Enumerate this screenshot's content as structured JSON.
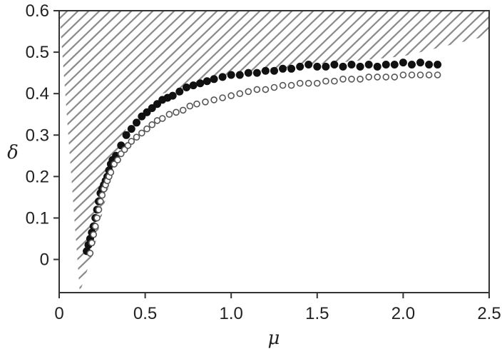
{
  "chart_data": {
    "type": "scatter",
    "xlabel": "μ",
    "ylabel": "δ",
    "xlim": [
      0,
      2.5
    ],
    "ylim": [
      -0.08,
      0.6
    ],
    "xticks": [
      "0",
      "0.5",
      "1.0",
      "1.5",
      "2.0",
      "2.5"
    ],
    "xtick_values": [
      0,
      0.5,
      1.0,
      1.5,
      2.0,
      2.5
    ],
    "yticks": [
      "0",
      "0.1",
      "0.2",
      "0.3",
      "0.4",
      "0.5",
      "0.6"
    ],
    "ytick_values": [
      0,
      0.1,
      0.2,
      0.3,
      0.4,
      0.5,
      0.6
    ],
    "grid": false,
    "legend": "none",
    "hatched_region": {
      "description": "infeasible region above boundary",
      "boundary": [
        [
          0.12,
          -0.08
        ],
        [
          0.2,
          0.02
        ],
        [
          0.3,
          0.2
        ],
        [
          0.4,
          0.33
        ],
        [
          0.6,
          0.4
        ],
        [
          1.0,
          0.445
        ],
        [
          1.5,
          0.47
        ],
        [
          2.0,
          0.49
        ],
        [
          2.5,
          0.54
        ]
      ],
      "color": "#8a8a8a"
    },
    "series": [
      {
        "marker": "filled",
        "color": "#111111",
        "points": [
          [
            0.16,
            0.02
          ],
          [
            0.17,
            0.035
          ],
          [
            0.18,
            0.05
          ],
          [
            0.19,
            0.065
          ],
          [
            0.2,
            0.08
          ],
          [
            0.21,
            0.1
          ],
          [
            0.22,
            0.12
          ],
          [
            0.23,
            0.14
          ],
          [
            0.24,
            0.16
          ],
          [
            0.25,
            0.17
          ],
          [
            0.26,
            0.18
          ],
          [
            0.27,
            0.19
          ],
          [
            0.28,
            0.2
          ],
          [
            0.29,
            0.215
          ],
          [
            0.3,
            0.23
          ],
          [
            0.31,
            0.24
          ],
          [
            0.33,
            0.25
          ],
          [
            0.36,
            0.275
          ],
          [
            0.39,
            0.3
          ],
          [
            0.42,
            0.315
          ],
          [
            0.45,
            0.33
          ],
          [
            0.48,
            0.345
          ],
          [
            0.51,
            0.355
          ],
          [
            0.54,
            0.365
          ],
          [
            0.57,
            0.375
          ],
          [
            0.6,
            0.385
          ],
          [
            0.63,
            0.39
          ],
          [
            0.66,
            0.395
          ],
          [
            0.7,
            0.405
          ],
          [
            0.74,
            0.415
          ],
          [
            0.78,
            0.42
          ],
          [
            0.82,
            0.425
          ],
          [
            0.86,
            0.43
          ],
          [
            0.9,
            0.435
          ],
          [
            0.95,
            0.44
          ],
          [
            1.0,
            0.445
          ],
          [
            1.05,
            0.445
          ],
          [
            1.1,
            0.45
          ],
          [
            1.15,
            0.45
          ],
          [
            1.2,
            0.455
          ],
          [
            1.25,
            0.455
          ],
          [
            1.3,
            0.46
          ],
          [
            1.35,
            0.46
          ],
          [
            1.4,
            0.465
          ],
          [
            1.45,
            0.47
          ],
          [
            1.5,
            0.465
          ],
          [
            1.55,
            0.465
          ],
          [
            1.6,
            0.47
          ],
          [
            1.65,
            0.465
          ],
          [
            1.7,
            0.47
          ],
          [
            1.75,
            0.465
          ],
          [
            1.8,
            0.47
          ],
          [
            1.85,
            0.465
          ],
          [
            1.9,
            0.47
          ],
          [
            1.95,
            0.47
          ],
          [
            2.0,
            0.475
          ],
          [
            2.05,
            0.47
          ],
          [
            2.1,
            0.475
          ],
          [
            2.15,
            0.47
          ],
          [
            2.2,
            0.47
          ]
        ]
      },
      {
        "marker": "open",
        "color": "#555555",
        "points": [
          [
            0.18,
            0.015
          ],
          [
            0.19,
            0.04
          ],
          [
            0.2,
            0.06
          ],
          [
            0.21,
            0.08
          ],
          [
            0.22,
            0.1
          ],
          [
            0.23,
            0.12
          ],
          [
            0.24,
            0.14
          ],
          [
            0.25,
            0.155
          ],
          [
            0.26,
            0.17
          ],
          [
            0.27,
            0.18
          ],
          [
            0.28,
            0.19
          ],
          [
            0.29,
            0.2
          ],
          [
            0.3,
            0.21
          ],
          [
            0.32,
            0.23
          ],
          [
            0.34,
            0.24
          ],
          [
            0.36,
            0.255
          ],
          [
            0.38,
            0.265
          ],
          [
            0.4,
            0.275
          ],
          [
            0.42,
            0.285
          ],
          [
            0.45,
            0.295
          ],
          [
            0.48,
            0.305
          ],
          [
            0.51,
            0.315
          ],
          [
            0.54,
            0.325
          ],
          [
            0.57,
            0.335
          ],
          [
            0.6,
            0.34
          ],
          [
            0.64,
            0.35
          ],
          [
            0.68,
            0.355
          ],
          [
            0.72,
            0.36
          ],
          [
            0.76,
            0.37
          ],
          [
            0.8,
            0.375
          ],
          [
            0.85,
            0.38
          ],
          [
            0.9,
            0.385
          ],
          [
            0.95,
            0.39
          ],
          [
            1.0,
            0.395
          ],
          [
            1.05,
            0.4
          ],
          [
            1.1,
            0.405
          ],
          [
            1.15,
            0.41
          ],
          [
            1.2,
            0.41
          ],
          [
            1.25,
            0.415
          ],
          [
            1.3,
            0.42
          ],
          [
            1.35,
            0.42
          ],
          [
            1.4,
            0.425
          ],
          [
            1.45,
            0.425
          ],
          [
            1.5,
            0.425
          ],
          [
            1.55,
            0.43
          ],
          [
            1.6,
            0.43
          ],
          [
            1.65,
            0.435
          ],
          [
            1.7,
            0.435
          ],
          [
            1.75,
            0.435
          ],
          [
            1.8,
            0.44
          ],
          [
            1.85,
            0.44
          ],
          [
            1.9,
            0.44
          ],
          [
            1.95,
            0.44
          ],
          [
            2.0,
            0.445
          ],
          [
            2.05,
            0.445
          ],
          [
            2.1,
            0.445
          ],
          [
            2.15,
            0.445
          ],
          [
            2.2,
            0.445
          ]
        ]
      }
    ]
  }
}
